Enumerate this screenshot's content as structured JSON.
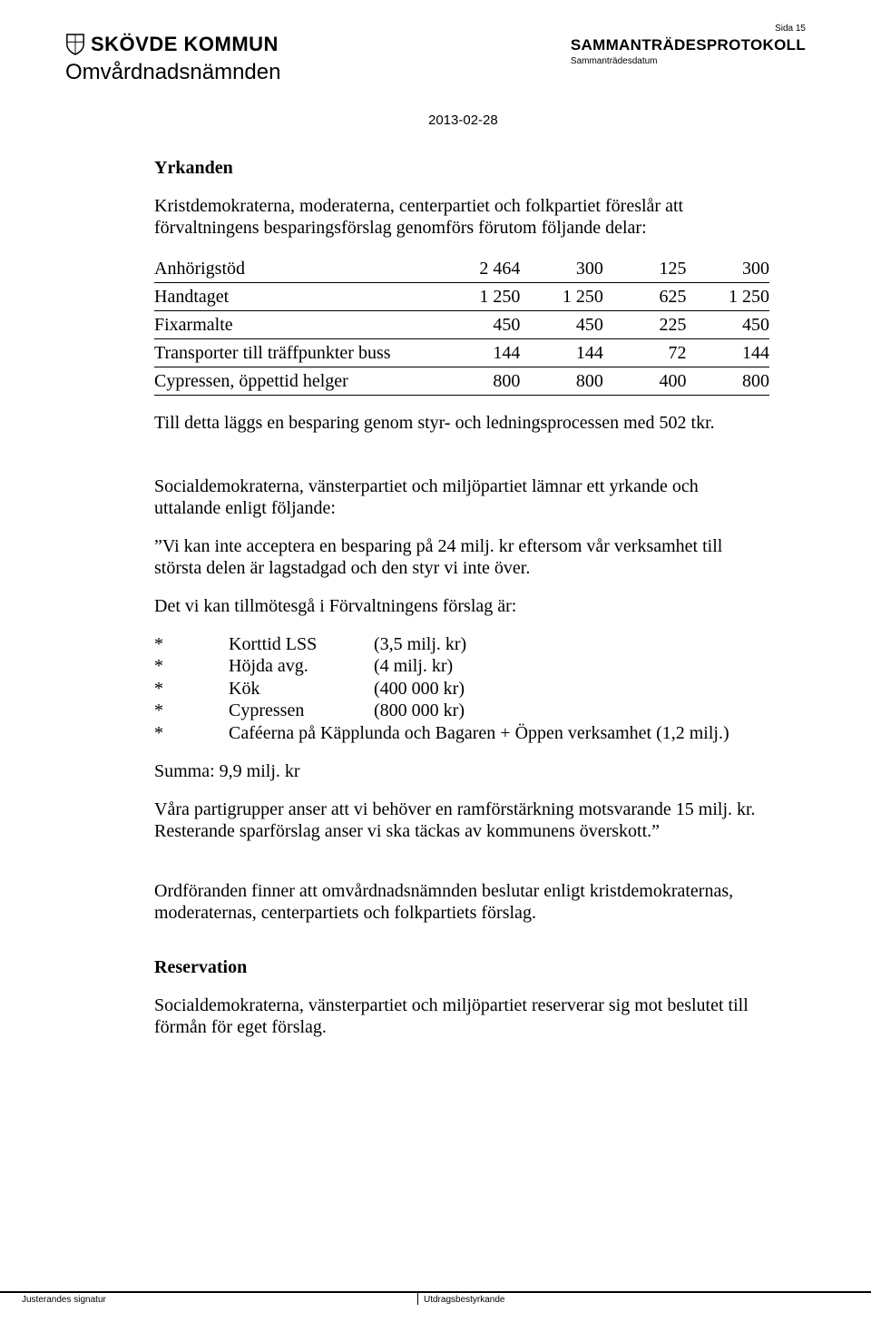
{
  "header": {
    "logo_text": "SKÖVDE KOMMUN",
    "committee": "Omvårdnadsnämnden",
    "protocol_title": "SAMMANTRÄDESPROTOKOLL",
    "protocol_sub": "Sammanträdesdatum",
    "date": "2013-02-28",
    "page_no": "Sida 15"
  },
  "section1": {
    "heading": "Yrkanden",
    "intro": "Kristdemokraterna, moderaterna, centerpartiet och folkpartiet föreslår att förvaltningens besparingsförslag genomförs förutom följande delar:",
    "table_rows": [
      {
        "label": "Anhörigstöd",
        "c1": "2 464",
        "c2": "300",
        "c3": "125",
        "c4": "300"
      },
      {
        "label": "Handtaget",
        "c1": "1 250",
        "c2": "1 250",
        "c3": "625",
        "c4": "1 250"
      },
      {
        "label": "Fixarmalte",
        "c1": "450",
        "c2": "450",
        "c3": "225",
        "c4": "450"
      },
      {
        "label": "Transporter till träffpunkter buss",
        "c1": "144",
        "c2": "144",
        "c3": "72",
        "c4": "144"
      },
      {
        "label": "Cypressen, öppettid helger",
        "c1": "800",
        "c2": "800",
        "c3": "400",
        "c4": "800"
      }
    ],
    "after_table": "Till detta läggs en besparing genom styr- och ledningsprocessen med 502 tkr."
  },
  "section2": {
    "p1": "Socialdemokraterna, vänsterpartiet och miljöpartiet lämnar ett yrkande och uttalande enligt följande:",
    "p2": "”Vi kan inte acceptera en besparing på 24 milj. kr eftersom vår verksamhet till största delen är lagstadgad och den styr vi inte över.",
    "p3": "Det vi kan tillmötesgå i Förvaltningens förslag är:",
    "bullets": [
      {
        "item": "Korttid LSS",
        "amount": "(3,5 milj. kr)"
      },
      {
        "item": "Höjda avg.",
        "amount": "(4 milj. kr)"
      },
      {
        "item": "Kök",
        "amount": "(400 000 kr)"
      },
      {
        "item": "Cypressen",
        "amount": "(800 000 kr)"
      },
      {
        "item": "Caféerna på Käpplunda och Bagaren + Öppen verksamhet (1,2 milj.)",
        "wide": true
      }
    ],
    "sum": "Summa:  9,9 milj. kr",
    "p4": "Våra partigrupper anser att vi behöver en ramförstärkning motsvarande 15 milj. kr. Resterande sparförslag anser vi ska täckas av kommunens överskott.”"
  },
  "section3": {
    "p1": "Ordföranden finner att omvårdnadsnämnden beslutar enligt kristdemokraternas, moderaternas, centerpartiets och folkpartiets förslag.",
    "heading": "Reservation",
    "p2": "Socialdemokraterna, vänsterpartiet och miljöpartiet reserverar sig mot beslutet till förmån för eget förslag."
  },
  "footer": {
    "left": "Justerandes signatur",
    "right": "Utdragsbestyrkande"
  }
}
